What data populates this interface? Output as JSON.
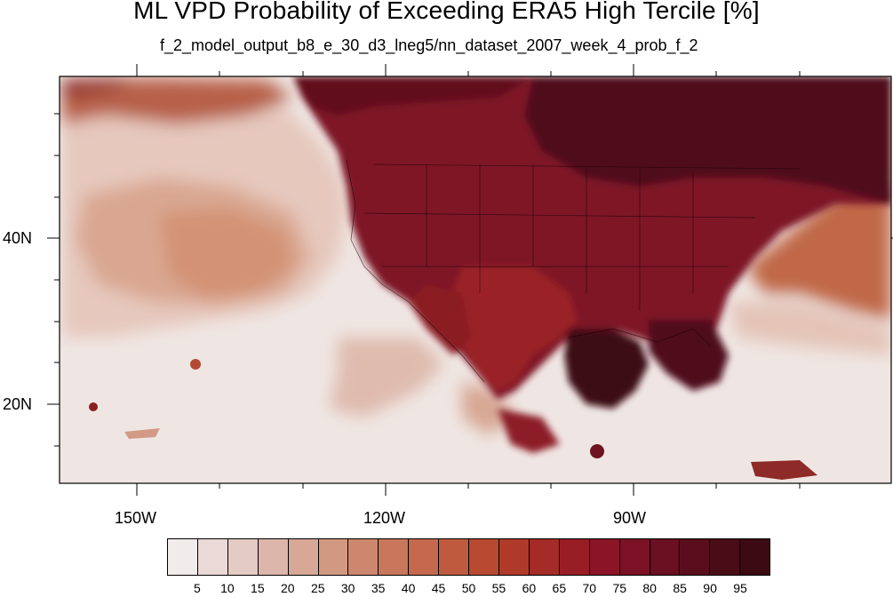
{
  "title": "ML VPD Probability of Exceeding ERA5 High Tercile [%]",
  "subtitle": "f_2_model_output_b8_e_30_d3_lneg5/nn_dataset_2007_week_4_prob_f_2",
  "map": {
    "projection": "lat-lon",
    "lon_range": [
      -160,
      -62
    ],
    "lat_range": [
      10,
      60
    ],
    "lat_ticks": [
      {
        "label": "40N",
        "lat": 40
      },
      {
        "label": "20N",
        "lat": 20
      }
    ],
    "lon_ticks": [
      {
        "label": "150W",
        "lon": -150
      },
      {
        "label": "120W",
        "lon": -120
      },
      {
        "label": "90W",
        "lon": -90
      }
    ]
  },
  "colorbar": {
    "labels": [
      "5",
      "10",
      "15",
      "20",
      "25",
      "30",
      "35",
      "40",
      "45",
      "50",
      "55",
      "60",
      "65",
      "70",
      "75",
      "80",
      "85",
      "90",
      "95"
    ],
    "colors": [
      "#f0eceb",
      "#ead9d6",
      "#e4cbc4",
      "#dcb6aa",
      "#d7a896",
      "#d29982",
      "#cc876e",
      "#c8775c",
      "#c4694d",
      "#c05a3f",
      "#b84a32",
      "#b03a2a",
      "#a52b26",
      "#981d25",
      "#8b1427",
      "#7c1126",
      "#6b0f22",
      "#5a0e1d",
      "#4a0d18",
      "#3b0a13"
    ]
  }
}
